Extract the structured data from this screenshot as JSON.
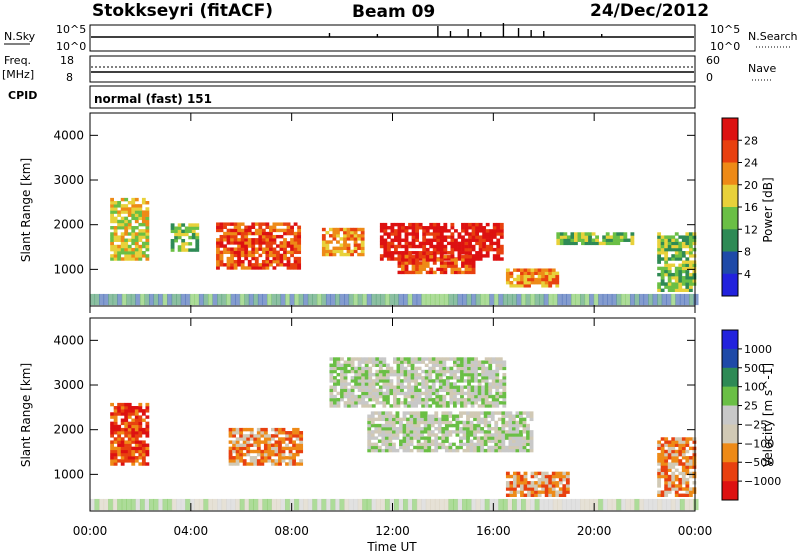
{
  "header": {
    "station": "Stokkseyri (fitACF)",
    "beam": "Beam 09",
    "date": "24/Dec/2012"
  },
  "left_labels": {
    "nsky": "N.Sky",
    "freq": "Freq.",
    "mhz": "[MHz]",
    "cpid": "CPID"
  },
  "right_labels": {
    "nsearch": "N.Search",
    "nave": "Nave"
  },
  "sky_ticks": {
    "left_top": "10^5",
    "left_bottom": "10^0",
    "right_top": "10^5",
    "right_bottom": "10^0"
  },
  "freq_ticks": {
    "top": "18",
    "bottom": "8"
  },
  "nave_ticks": {
    "top": "60",
    "bottom": "0"
  },
  "cpid_text": "normal (fast) 151",
  "time_axis": {
    "label": "Time UT",
    "ticks": [
      "00:00",
      "04:00",
      "08:00",
      "12:00",
      "16:00",
      "20:00",
      "00:00"
    ]
  },
  "colors": {
    "power": [
      "#2222dd",
      "#1f4aa8",
      "#2e8a55",
      "#6abf45",
      "#e8d13a",
      "#ee8a17",
      "#e8400f",
      "#dd1111"
    ],
    "velocity": [
      "#dd1111",
      "#e8400f",
      "#ee8a17",
      "#d1c9b5",
      "#c8c8c8",
      "#6abf45",
      "#2e8a55",
      "#1f4aa8",
      "#2222dd"
    ]
  },
  "chart_data": [
    {
      "type": "heatmap",
      "title": "Power",
      "ylabel": "Slant Range [km]",
      "xlabel": "Time UT",
      "ylim": [
        180,
        4500
      ],
      "xlim_hours": [
        0,
        24
      ],
      "y_ticks": [
        "4000",
        "3000",
        "2000",
        "1000"
      ],
      "y_tick_values": [
        4000,
        3000,
        2000,
        1000
      ],
      "colorbar": {
        "label": "Power [dB]",
        "ticks": [
          "28",
          "24",
          "20",
          "16",
          "12",
          "8",
          "4"
        ],
        "range": [
          0,
          32
        ]
      },
      "regions": [
        {
          "t": [
            0.8,
            2.3
          ],
          "r": [
            1200,
            2600
          ],
          "level": 4
        },
        {
          "t": [
            3.2,
            4.2
          ],
          "r": [
            1400,
            2000
          ],
          "level": 3
        },
        {
          "t": [
            5.0,
            8.3
          ],
          "r": [
            1000,
            2000
          ],
          "level": 6
        },
        {
          "t": [
            9.2,
            10.8
          ],
          "r": [
            1300,
            1900
          ],
          "level": 5
        },
        {
          "t": [
            11.5,
            16.3
          ],
          "r": [
            1200,
            2000
          ],
          "level": 7
        },
        {
          "t": [
            12.2,
            15.2
          ],
          "r": [
            900,
            1300
          ],
          "level": 6
        },
        {
          "t": [
            16.5,
            18.5
          ],
          "r": [
            600,
            1000
          ],
          "level": 5
        },
        {
          "t": [
            18.5,
            21.5
          ],
          "r": [
            1550,
            1800
          ],
          "level": 3
        },
        {
          "t": [
            22.5,
            24.0
          ],
          "r": [
            500,
            1800
          ],
          "level": 3
        }
      ]
    },
    {
      "type": "heatmap",
      "title": "Velocity",
      "ylabel": "Slant Range [km]",
      "xlabel": "Time UT",
      "ylim": [
        180,
        4500
      ],
      "xlim_hours": [
        0,
        24
      ],
      "y_ticks": [
        "4000",
        "3000",
        "2000",
        "1000"
      ],
      "y_tick_values": [
        4000,
        3000,
        2000,
        1000
      ],
      "colorbar": {
        "label": "Velocity [m s^-1]",
        "ticks": [
          "1000",
          "500",
          "100",
          "25",
          "−25",
          "−100",
          "−500",
          "−1000"
        ]
      },
      "regions": [
        {
          "t": [
            0.8,
            2.3
          ],
          "r": [
            1200,
            2600
          ],
          "level": 1
        },
        {
          "t": [
            5.5,
            8.3
          ],
          "r": [
            1200,
            2000
          ],
          "level": 2
        },
        {
          "t": [
            11.0,
            17.5
          ],
          "r": [
            1500,
            2400
          ],
          "level": 4
        },
        {
          "t": [
            9.5,
            16.5
          ],
          "r": [
            2500,
            3600
          ],
          "level": 4
        },
        {
          "t": [
            16.5,
            19.0
          ],
          "r": [
            500,
            1000
          ],
          "level": 2
        },
        {
          "t": [
            22.5,
            24.0
          ],
          "r": [
            500,
            1800
          ],
          "level": 2
        }
      ]
    }
  ]
}
